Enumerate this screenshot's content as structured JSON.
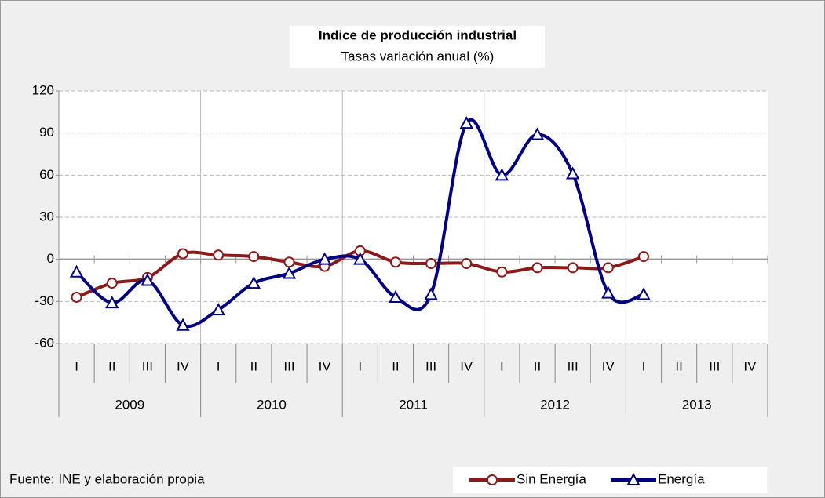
{
  "chart_data": {
    "type": "line",
    "title": "Indice de producción industrial",
    "subtitle": "Tasas variación anual (%)",
    "source": "Fuente: INE y elaboración propia",
    "categories": [
      "I",
      "II",
      "III",
      "IV",
      "I",
      "II",
      "III",
      "IV",
      "I",
      "II",
      "III",
      "IV",
      "I",
      "II",
      "III",
      "IV",
      "I",
      "II",
      "III",
      "IV"
    ],
    "groups": [
      "2009",
      "2010",
      "2011",
      "2012",
      "2013"
    ],
    "series": [
      {
        "name": "Sin Energía",
        "color": "#8b1a1a",
        "marker": "circle",
        "values": [
          -27,
          -17,
          -13,
          4,
          3,
          2,
          -2,
          -5,
          6,
          -2,
          -3,
          -3,
          -9,
          -6,
          -6,
          -6,
          2,
          null,
          null,
          null
        ]
      },
      {
        "name": "Energía",
        "color": "#000080",
        "marker": "triangle",
        "values": [
          -9,
          -31,
          -15,
          -47,
          -36,
          -17,
          -10,
          0,
          0,
          -27,
          -25,
          97,
          60,
          89,
          61,
          -24,
          -25,
          null,
          null,
          null
        ]
      }
    ],
    "ylim": [
      -60,
      120
    ],
    "yticks": [
      -60,
      -30,
      0,
      30,
      60,
      90,
      120
    ],
    "grid": true,
    "legend": "bottom-right"
  }
}
